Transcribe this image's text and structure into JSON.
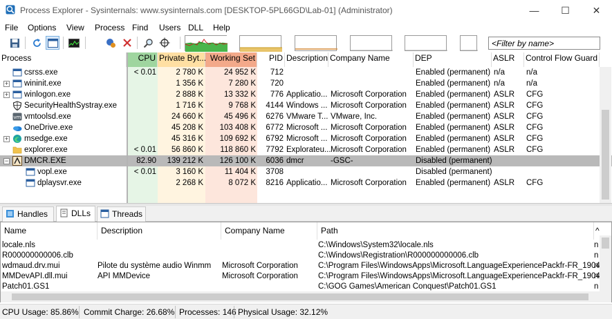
{
  "window": {
    "title": "Process Explorer - Sysinternals: www.sysinternals.com [DESKTOP-5PL66GD\\Lab-01] (Administrator)",
    "minimize": "—",
    "maximize": "☐",
    "close": "✕"
  },
  "menu": [
    "File",
    "Options",
    "View",
    "Process",
    "Find",
    "Users",
    "DLL",
    "Help"
  ],
  "toolbar": {
    "filter_placeholder": "<Filter by name>",
    "icons": [
      "save-icon",
      "refresh-icon",
      "system-info-icon",
      "cpu-graph-icon",
      "kill-process-icon",
      "close-x-icon",
      "find-icon",
      "crosshair-icon"
    ]
  },
  "process_columns": [
    "Process",
    "CPU",
    "Private Byt...",
    "Working Set",
    "PID",
    "Description",
    "Company Name",
    "DEP",
    "ASLR",
    "Control Flow Guard"
  ],
  "processes": [
    {
      "name": "csrss.exe",
      "cpu": "< 0.01",
      "private": "2 780 K",
      "working": "24 952 K",
      "pid": "712",
      "desc": "",
      "company": "",
      "dep": "Enabled (permanent)",
      "aslr": "n/a",
      "cfg": "n/a",
      "indent": 0,
      "expander": "",
      "icon": "window-icon",
      "bg": "#ffffff"
    },
    {
      "name": "wininit.exe",
      "cpu": "",
      "private": "1 356 K",
      "working": "7 280 K",
      "pid": "720",
      "desc": "",
      "company": "",
      "dep": "Enabled (permanent)",
      "aslr": "n/a",
      "cfg": "n/a",
      "indent": 0,
      "expander": "+",
      "icon": "window-icon",
      "bg": "#ffffff"
    },
    {
      "name": "winlogon.exe",
      "cpu": "",
      "private": "2 888 K",
      "working": "13 332 K",
      "pid": "776",
      "desc": "Applicatio...",
      "company": "Microsoft Corporation",
      "dep": "Enabled (permanent)",
      "aslr": "ASLR",
      "cfg": "CFG",
      "indent": 0,
      "expander": "+",
      "icon": "window-icon",
      "bg": "#ffffff"
    },
    {
      "name": "SecurityHealthSystray.exe",
      "cpu": "",
      "private": "1 716 K",
      "working": "9 768 K",
      "pid": "4144",
      "desc": "Windows ...",
      "company": "Microsoft Corporation",
      "dep": "Enabled (permanent)",
      "aslr": "ASLR",
      "cfg": "CFG",
      "indent": 0,
      "expander": "",
      "icon": "shield-icon",
      "bg": "#ffffff"
    },
    {
      "name": "vmtoolsd.exe",
      "cpu": "",
      "private": "24 660 K",
      "working": "45 496 K",
      "pid": "6276",
      "desc": "VMware T...",
      "company": "VMware, Inc.",
      "dep": "Enabled (permanent)",
      "aslr": "ASLR",
      "cfg": "CFG",
      "indent": 0,
      "expander": "",
      "icon": "vmware-icon",
      "bg": "#ffffff"
    },
    {
      "name": "OneDrive.exe",
      "cpu": "",
      "private": "45 208 K",
      "working": "103 408 K",
      "pid": "6772",
      "desc": "Microsoft ...",
      "company": "Microsoft Corporation",
      "dep": "Enabled (permanent)",
      "aslr": "ASLR",
      "cfg": "CFG",
      "indent": 0,
      "expander": "",
      "icon": "onedrive-icon",
      "bg": "#ffffff"
    },
    {
      "name": "msedge.exe",
      "cpu": "",
      "private": "45 316 K",
      "working": "109 692 K",
      "pid": "6792",
      "desc": "Microsoft ...",
      "company": "Microsoft Corporation",
      "dep": "Enabled (permanent)",
      "aslr": "ASLR",
      "cfg": "CFG",
      "indent": 0,
      "expander": "+",
      "icon": "edge-icon",
      "bg": "#ffffff"
    },
    {
      "name": "explorer.exe",
      "cpu": "< 0.01",
      "private": "56 860 K",
      "working": "118 860 K",
      "pid": "7792",
      "desc": "Explorateu...",
      "company": "Microsoft Corporation",
      "dep": "Enabled (permanent)",
      "aslr": "ASLR",
      "cfg": "CFG",
      "indent": 0,
      "expander": "",
      "icon": "folder-icon",
      "bg": "#ffffff"
    },
    {
      "name": "DMCR.EXE",
      "cpu": "82.90",
      "private": "139 212 K",
      "working": "126 100 K",
      "pid": "6036",
      "desc": "dmcr",
      "company": "-GSC-",
      "dep": "Disabled (permanent)",
      "aslr": "",
      "cfg": "",
      "indent": 0,
      "expander": "−",
      "icon": "dmcr-icon",
      "bg": "#b9b9b9",
      "selected": true
    },
    {
      "name": "vopl.exe",
      "cpu": "< 0.01",
      "private": "3 160 K",
      "working": "11 404 K",
      "pid": "3708",
      "desc": "",
      "company": "",
      "dep": "Disabled (permanent)",
      "aslr": "",
      "cfg": "",
      "indent": 1,
      "expander": "",
      "icon": "window-icon",
      "bg": "#ffffff"
    },
    {
      "name": "dplaysvr.exe",
      "cpu": "",
      "private": "2 268 K",
      "working": "8 072 K",
      "pid": "8216",
      "desc": "Applicatio...",
      "company": "Microsoft Corporation",
      "dep": "Enabled (permanent)",
      "aslr": "ASLR",
      "cfg": "CFG",
      "indent": 1,
      "expander": "",
      "icon": "window-icon",
      "bg": "#ffffff"
    }
  ],
  "tabs": [
    {
      "label": "Handles",
      "icon": "handles-icon",
      "active": false
    },
    {
      "label": "DLLs",
      "icon": "dlls-icon",
      "active": true
    },
    {
      "label": "Threads",
      "icon": "threads-icon",
      "active": false
    }
  ],
  "dll_columns": [
    "Name",
    "Description",
    "Company Name",
    "Path",
    "^"
  ],
  "dlls": [
    {
      "name": "locale.nls",
      "desc": "",
      "company": "",
      "path": "C:\\Windows\\System32\\locale.nls",
      "extra": "n"
    },
    {
      "name": "R000000000006.clb",
      "desc": "",
      "company": "",
      "path": "C:\\Windows\\Registration\\R000000000006.clb",
      "extra": "n"
    },
    {
      "name": "wdmaud.drv.mui",
      "desc": "Pilote du système audio Winmm",
      "company": "Microsoft Corporation",
      "path": "C:\\Program Files\\WindowsApps\\Microsoft.LanguageExperiencePackfr-FR_1904...",
      "extra": "n"
    },
    {
      "name": "MMDevAPI.dll.mui",
      "desc": "API MMDevice",
      "company": "Microsoft Corporation",
      "path": "C:\\Program Files\\WindowsApps\\Microsoft.LanguageExperiencePackfr-FR_1904...",
      "extra": "n"
    },
    {
      "name": "Patch01.GS1",
      "desc": "",
      "company": "",
      "path": "C:\\GOG Games\\American Conquest\\Patch01.GS1",
      "extra": "n"
    }
  ],
  "status": {
    "cpu": "CPU Usage: 85.86%",
    "commit": "Commit Charge: 26.68%",
    "processes": "Processes: 146",
    "physical": "Physical Usage: 32.12%"
  },
  "colors": {
    "cpu_header": "#9fd59f",
    "cpu_col": "#e6f5e6",
    "private_header": "#ffdfa3",
    "private_col": "#fff4e0",
    "working_header": "#f3a98a",
    "working_col": "#fde6dc",
    "selected_row": "#b9b9b9"
  }
}
